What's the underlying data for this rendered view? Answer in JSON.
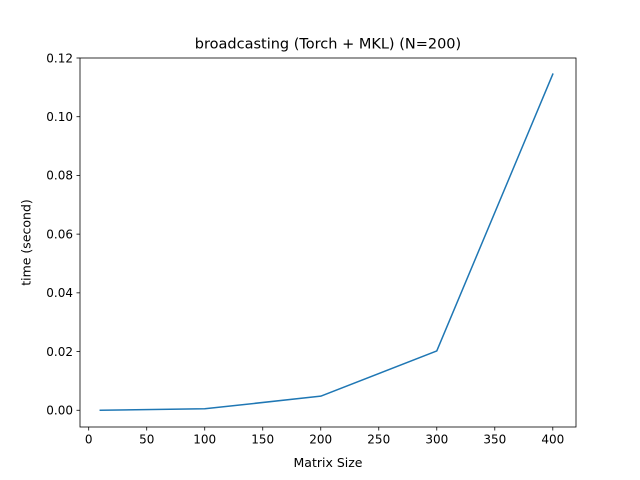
{
  "chart_data": {
    "type": "line",
    "title": "broadcasting (Torch + MKL) (N=200)",
    "xlabel": "Matrix Size",
    "ylabel": "time (second)",
    "xlim": [
      -7.5,
      420
    ],
    "ylim": [
      -0.0057,
      0.12
    ],
    "xticks": [
      0,
      50,
      100,
      150,
      200,
      250,
      300,
      350,
      400
    ],
    "xtick_labels": [
      "0",
      "50",
      "100",
      "150",
      "200",
      "250",
      "300",
      "350",
      "400"
    ],
    "yticks": [
      0.0,
      0.02,
      0.04,
      0.06,
      0.08,
      0.1,
      0.12
    ],
    "ytick_labels": [
      "0.00",
      "0.02",
      "0.04",
      "0.06",
      "0.08",
      "0.10",
      "0.12"
    ],
    "grid": false,
    "series": [
      {
        "x": [
          10,
          100,
          200,
          300,
          400
        ],
        "y": [
          2e-05,
          0.0005,
          0.0048,
          0.0202,
          0.1145
        ],
        "color": "#1f77b4"
      }
    ]
  }
}
